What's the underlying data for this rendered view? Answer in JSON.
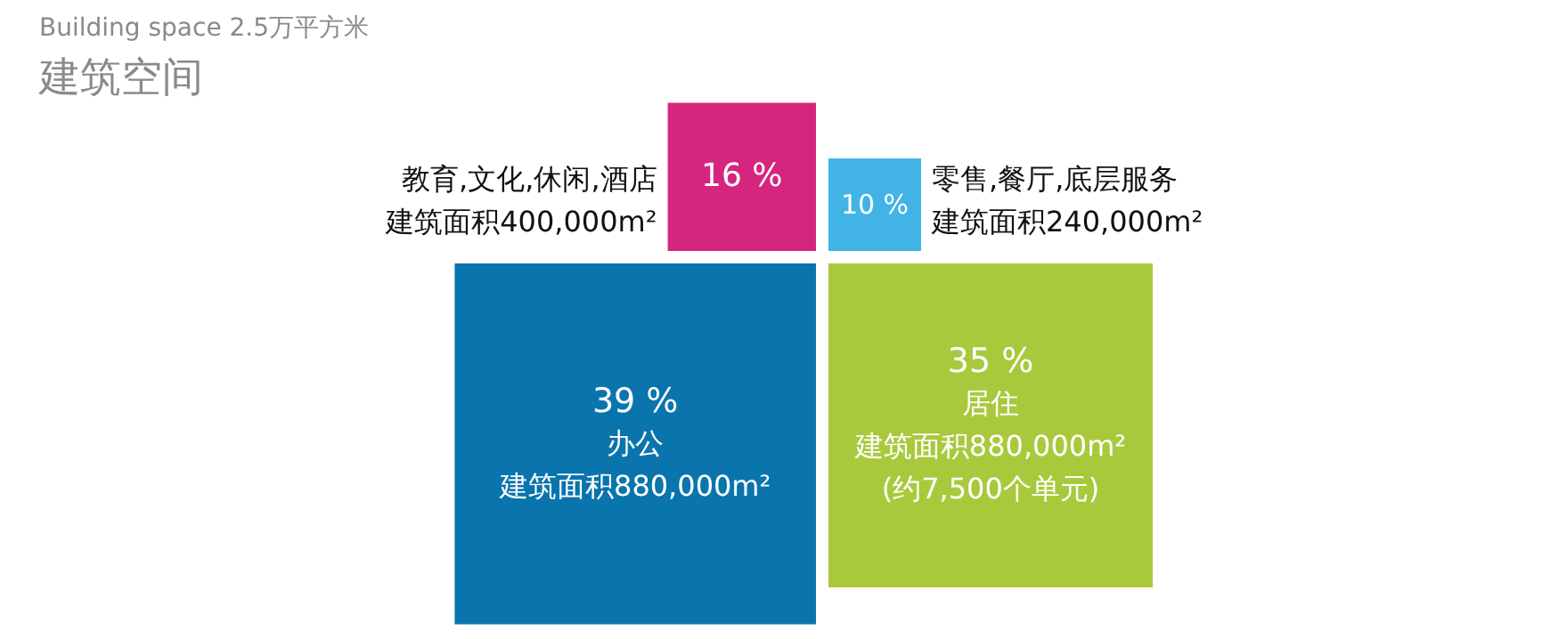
{
  "chart_data": {
    "type": "other",
    "title": "Building space 2.5万平方米",
    "subtitle": "建筑空间",
    "categories": [
      "教育,文化,休闲,酒店",
      "零售,餐厅,底层服务",
      "办公",
      "居住"
    ],
    "values": [
      16,
      10,
      39,
      35
    ],
    "colors": [
      "#d6257f",
      "#41b4e5",
      "#0a74ad",
      "#a9c93d"
    ],
    "value_labels": [
      "16 %",
      "10 %",
      "39 %",
      "35 %"
    ],
    "annotations": [
      {
        "text": "建筑面积400,000m²",
        "x": "教育,文化,休闲,酒店"
      },
      {
        "text": "建筑面积240,000m²",
        "x": "零售,餐厅,底层服务"
      },
      {
        "text": "建筑面积880,000m²",
        "x": "办公"
      },
      {
        "text": "建筑面积880,000m²",
        "x": "居住"
      },
      {
        "text": "(约7,500个单元)",
        "x": "居住"
      }
    ]
  }
}
